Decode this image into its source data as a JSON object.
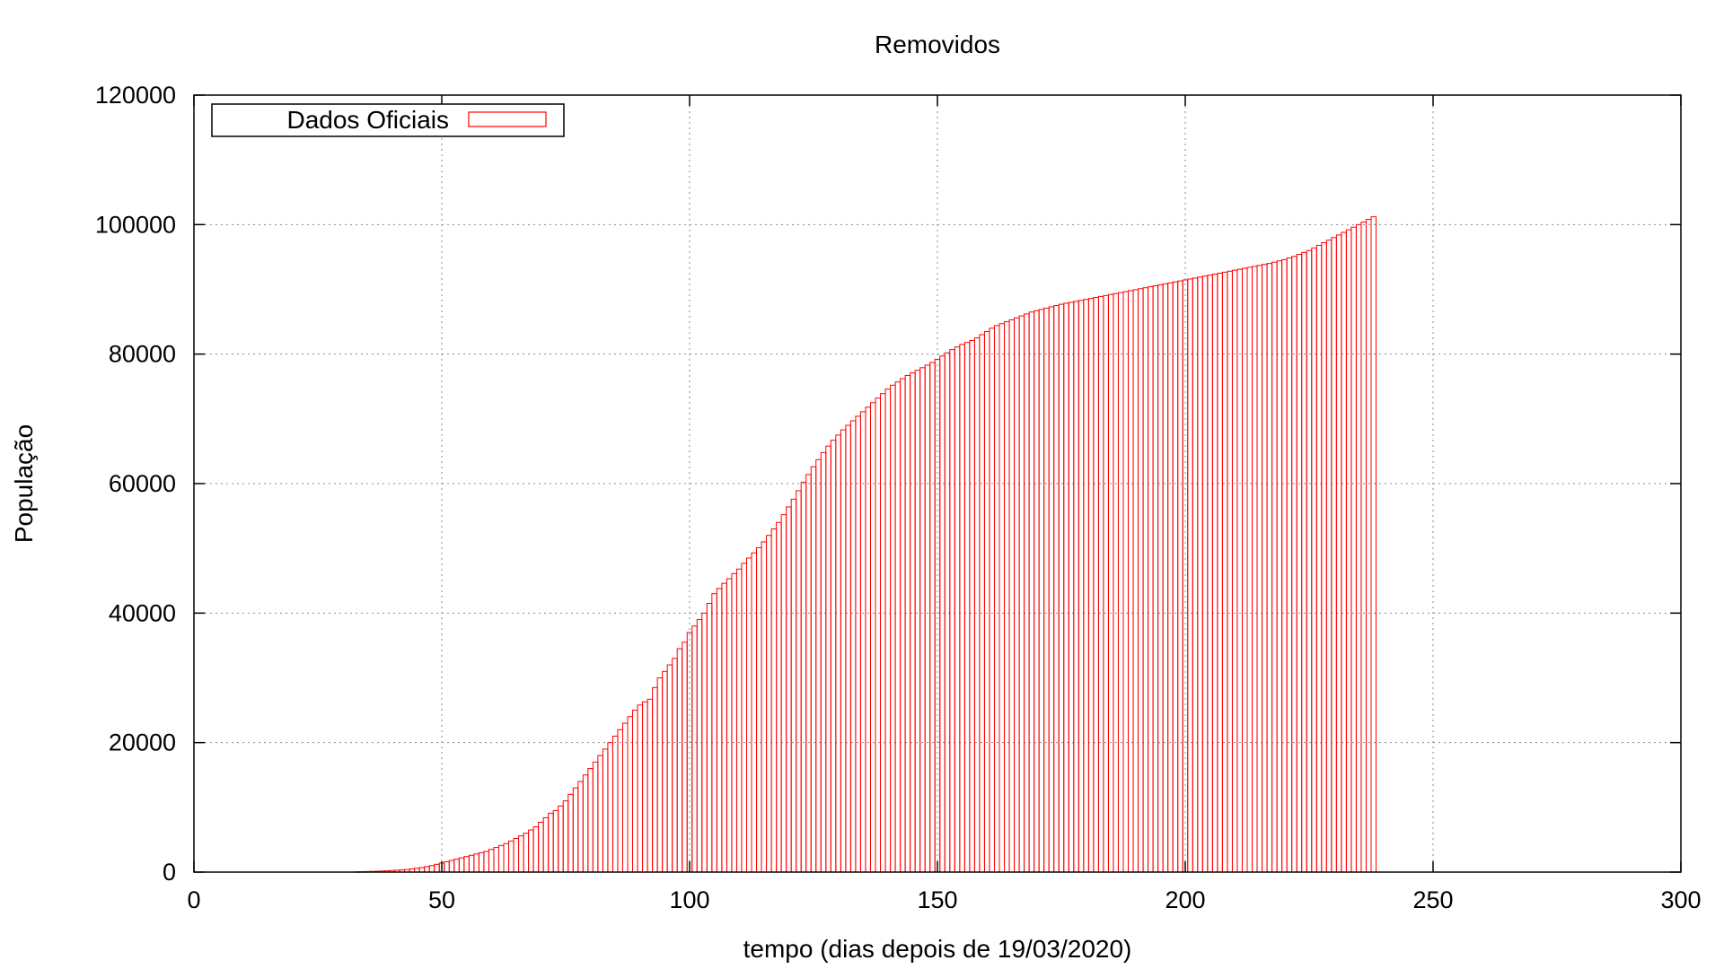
{
  "chart_data": {
    "type": "bar",
    "title": "Removidos",
    "xlabel": "tempo (dias depois de 19/03/2020)",
    "ylabel": "População",
    "xlim": [
      0,
      300
    ],
    "ylim": [
      0,
      120000
    ],
    "x_ticks": [
      "0",
      "50",
      "100",
      "150",
      "200",
      "250",
      "300"
    ],
    "y_ticks": [
      "0",
      "20000",
      "40000",
      "60000",
      "80000",
      "100000",
      "120000"
    ],
    "grid": true,
    "legend_position": "top-left",
    "bar_color": "#ff0000",
    "series": [
      {
        "name": "Dados Oficiais",
        "x_start": 33,
        "values": [
          50,
          60,
          80,
          100,
          130,
          160,
          200,
          250,
          300,
          350,
          400,
          500,
          600,
          700,
          850,
          1000,
          1200,
          1400,
          1600,
          1800,
          2000,
          2200,
          2400,
          2600,
          2800,
          3000,
          3200,
          3500,
          3800,
          4100,
          4400,
          4800,
          5200,
          5600,
          6000,
          6500,
          7000,
          7700,
          8400,
          9100,
          9500,
          10200,
          11000,
          12000,
          13000,
          14000,
          15000,
          16000,
          17000,
          18000,
          19000,
          20000,
          21000,
          22000,
          23000,
          24000,
          25000,
          25800,
          26300,
          26700,
          28500,
          30000,
          31000,
          32000,
          33000,
          34500,
          35500,
          37000,
          38000,
          39000,
          40000,
          41500,
          43000,
          43800,
          44600,
          45300,
          46100,
          46800,
          47700,
          48500,
          49300,
          50100,
          51000,
          52000,
          53000,
          54000,
          55200,
          56400,
          57600,
          58900,
          60200,
          61400,
          62600,
          63700,
          64800,
          65800,
          66700,
          67500,
          68300,
          69000,
          69700,
          70400,
          71100,
          71800,
          72500,
          73200,
          73900,
          74600,
          75200,
          75700,
          76200,
          76700,
          77100,
          77500,
          77900,
          78300,
          78700,
          79200,
          79700,
          80200,
          80700,
          81100,
          81500,
          81800,
          82100,
          82500,
          83000,
          83500,
          84000,
          84400,
          84700,
          85000,
          85300,
          85600,
          85900,
          86200,
          86500,
          86700,
          86900,
          87100,
          87300,
          87500,
          87700,
          87850,
          88000,
          88150,
          88300,
          88450,
          88600,
          88750,
          88900,
          89050,
          89200,
          89350,
          89500,
          89650,
          89800,
          89950,
          90100,
          90250,
          90400,
          90550,
          90700,
          90850,
          91000,
          91150,
          91300,
          91450,
          91600,
          91750,
          91900,
          92050,
          92200,
          92350,
          92500,
          92650,
          92800,
          92950,
          93100,
          93250,
          93400,
          93550,
          93700,
          93850,
          94000,
          94200,
          94400,
          94600,
          94850,
          95100,
          95400,
          95700,
          96000,
          96400,
          96800,
          97200,
          97600,
          98000,
          98400,
          98800,
          99200,
          99600,
          100000,
          100400,
          100800,
          101200
        ]
      }
    ]
  }
}
